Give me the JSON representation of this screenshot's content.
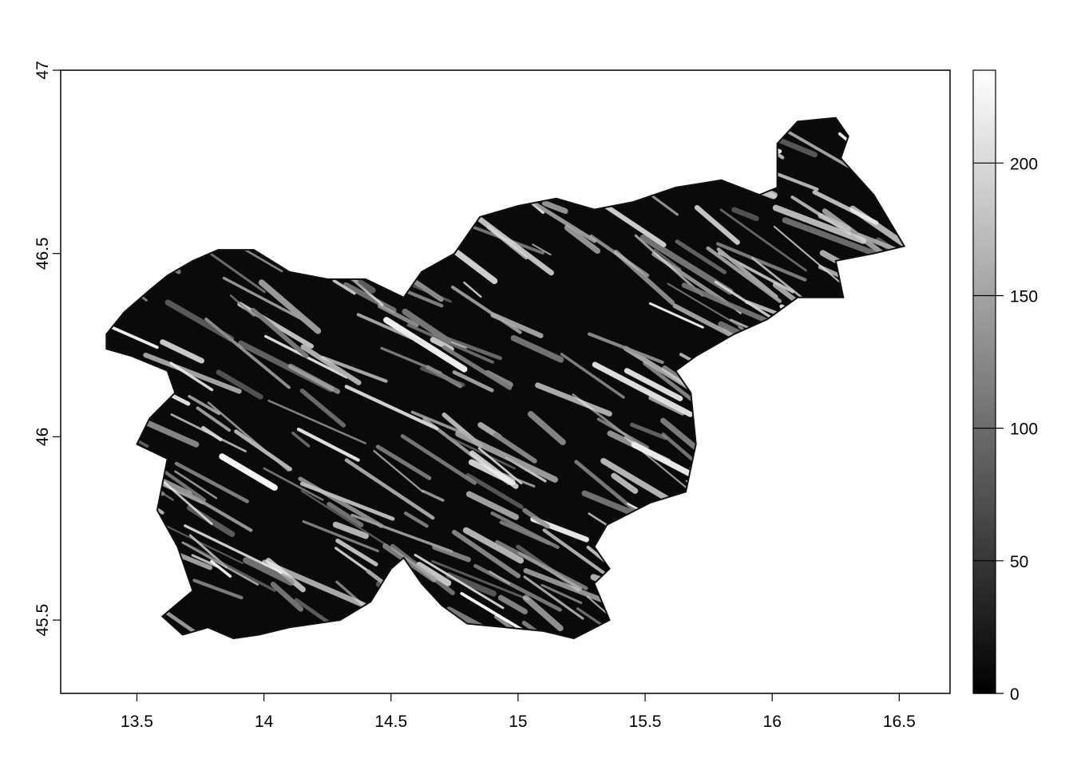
{
  "map": {
    "x_axis": {
      "range": [
        13.2,
        16.7
      ],
      "ticks": [
        13.5,
        14,
        14.5,
        15,
        15.5,
        16,
        16.5
      ],
      "tick_labels": [
        "13.5",
        "14",
        "14.5",
        "15",
        "15.5",
        "16",
        "16.5"
      ],
      "label": ""
    },
    "y_axis": {
      "range": [
        45.3,
        47.0
      ],
      "ticks": [
        45.5,
        46,
        46.5,
        47
      ],
      "tick_labels": [
        "45.5",
        "46",
        "46.5",
        "47"
      ],
      "label": ""
    },
    "legend": {
      "type": "continuous-grayscale",
      "placement": "right",
      "range": [
        0,
        235
      ],
      "ticks": [
        0,
        50,
        100,
        150,
        200
      ],
      "tick_labels": [
        "0",
        "50",
        "100",
        "150",
        "200"
      ],
      "color_low": "#000000",
      "color_high": "#ffffff"
    },
    "raster": {
      "extent_lon": [
        13.38,
        16.61
      ],
      "extent_lat": [
        45.42,
        46.88
      ],
      "pattern": "hillshade-like ridges with NW–SE striping",
      "fill_color": "#0a0a0a",
      "highlight_color": "#ffffff"
    }
  }
}
